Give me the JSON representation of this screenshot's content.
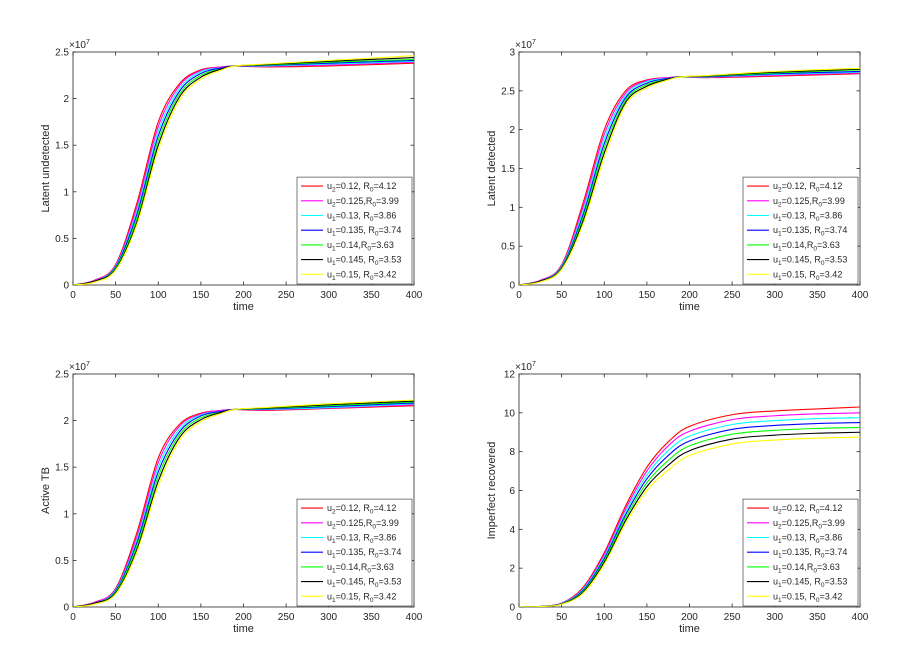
{
  "chart_data": [
    {
      "type": "line",
      "ylabel": "Latent undetected",
      "xlabel": "time",
      "exponent": "7",
      "xlim": [
        0,
        400
      ],
      "ylim": [
        0,
        2.5
      ],
      "xticks": [
        0,
        50,
        100,
        150,
        200,
        250,
        300,
        350,
        400
      ],
      "yticks": [
        0,
        0.5,
        1,
        1.5,
        2,
        2.5
      ],
      "ytick_labels": [
        "0",
        "0.5",
        "1",
        "1.5",
        "2",
        "2.5"
      ],
      "legend_position": "lower-right",
      "x": [
        0,
        25,
        50,
        75,
        100,
        125,
        150,
        175,
        190,
        225,
        300,
        400
      ],
      "series": [
        {
          "sub": "2",
          "prefix": "=0.12, R",
          "suffix": "=4.12",
          "color": "#ff0000",
          "values": [
            0.0,
            0.05,
            0.22,
            0.88,
            1.75,
            2.16,
            2.31,
            2.34,
            2.35,
            2.34,
            2.35,
            2.38
          ]
        },
        {
          "sub": "2",
          "prefix": "=0.125,R",
          "suffix": "=3.99",
          "color": "#ff00ff",
          "values": [
            0.0,
            0.05,
            0.21,
            0.84,
            1.7,
            2.14,
            2.3,
            2.34,
            2.35,
            2.345,
            2.36,
            2.39
          ]
        },
        {
          "sub": "1",
          "prefix": "=0.13, R",
          "suffix": "=3.86",
          "color": "#00ffff",
          "values": [
            0.0,
            0.04,
            0.2,
            0.8,
            1.65,
            2.11,
            2.29,
            2.33,
            2.35,
            2.35,
            2.37,
            2.4
          ]
        },
        {
          "sub": "1",
          "prefix": "=0.135, R",
          "suffix": "=3.74",
          "color": "#0000ff",
          "values": [
            0.0,
            0.04,
            0.19,
            0.76,
            1.6,
            2.08,
            2.27,
            2.33,
            2.35,
            2.355,
            2.38,
            2.41
          ]
        },
        {
          "sub": "1",
          "prefix": "=0.14,R",
          "suffix": "=3.63",
          "color": "#00ff00",
          "values": [
            0.0,
            0.04,
            0.18,
            0.72,
            1.55,
            2.05,
            2.25,
            2.32,
            2.35,
            2.36,
            2.39,
            2.42
          ]
        },
        {
          "sub": "1",
          "prefix": "=0.145, R",
          "suffix": "=3.53",
          "color": "#000000",
          "values": [
            0.0,
            0.04,
            0.17,
            0.68,
            1.5,
            2.02,
            2.23,
            2.32,
            2.35,
            2.365,
            2.4,
            2.44
          ]
        },
        {
          "sub": "1",
          "prefix": "=0.15, R",
          "suffix": "=3.42",
          "color": "#ffff00",
          "values": [
            0.0,
            0.03,
            0.16,
            0.65,
            1.45,
            1.99,
            2.21,
            2.31,
            2.35,
            2.37,
            2.41,
            2.46
          ]
        }
      ]
    },
    {
      "type": "line",
      "ylabel": "Latent detected",
      "xlabel": "time",
      "exponent": "7",
      "xlim": [
        0,
        400
      ],
      "ylim": [
        0,
        3
      ],
      "xticks": [
        0,
        50,
        100,
        150,
        200,
        250,
        300,
        350,
        400
      ],
      "yticks": [
        0,
        0.5,
        1,
        1.5,
        2,
        2.5,
        3
      ],
      "ytick_labels": [
        "0",
        "0.5",
        "1",
        "1.5",
        "2",
        "2.5",
        "3"
      ],
      "legend_position": "lower-right",
      "x": [
        0,
        25,
        50,
        75,
        100,
        125,
        150,
        175,
        190,
        225,
        300,
        400
      ],
      "series": [
        {
          "sub": "2",
          "prefix": "=0.12, R",
          "suffix": "=4.12",
          "color": "#ff0000",
          "values": [
            0.0,
            0.06,
            0.26,
            1.05,
            2.0,
            2.5,
            2.64,
            2.67,
            2.68,
            2.67,
            2.69,
            2.72
          ]
        },
        {
          "sub": "2",
          "prefix": "=0.125,R",
          "suffix": "=3.99",
          "color": "#ff00ff",
          "values": [
            0.0,
            0.06,
            0.25,
            1.0,
            1.94,
            2.47,
            2.63,
            2.67,
            2.68,
            2.675,
            2.7,
            2.73
          ]
        },
        {
          "sub": "1",
          "prefix": "=0.13, R",
          "suffix": "=3.86",
          "color": "#00ffff",
          "values": [
            0.0,
            0.05,
            0.24,
            0.95,
            1.88,
            2.44,
            2.62,
            2.66,
            2.68,
            2.68,
            2.71,
            2.74
          ]
        },
        {
          "sub": "1",
          "prefix": "=0.135, R",
          "suffix": "=3.74",
          "color": "#0000ff",
          "values": [
            0.0,
            0.05,
            0.23,
            0.9,
            1.82,
            2.41,
            2.6,
            2.66,
            2.68,
            2.685,
            2.72,
            2.75
          ]
        },
        {
          "sub": "1",
          "prefix": "=0.14,R",
          "suffix": "=3.63",
          "color": "#00ff00",
          "values": [
            0.0,
            0.05,
            0.22,
            0.86,
            1.76,
            2.38,
            2.58,
            2.65,
            2.68,
            2.69,
            2.73,
            2.77
          ]
        },
        {
          "sub": "1",
          "prefix": "=0.145, R",
          "suffix": "=3.53",
          "color": "#000000",
          "values": [
            0.0,
            0.05,
            0.21,
            0.82,
            1.7,
            2.35,
            2.56,
            2.65,
            2.68,
            2.695,
            2.74,
            2.78
          ]
        },
        {
          "sub": "1",
          "prefix": "=0.15, R",
          "suffix": "=3.42",
          "color": "#ffff00",
          "values": [
            0.0,
            0.04,
            0.2,
            0.78,
            1.64,
            2.32,
            2.54,
            2.64,
            2.68,
            2.7,
            2.75,
            2.79
          ]
        }
      ]
    },
    {
      "type": "line",
      "ylabel": "Active TB",
      "xlabel": "time",
      "exponent": "7",
      "xlim": [
        0,
        400
      ],
      "ylim": [
        0,
        2.5
      ],
      "xticks": [
        0,
        50,
        100,
        150,
        200,
        250,
        300,
        350,
        400
      ],
      "yticks": [
        0,
        0.5,
        1,
        1.5,
        2,
        2.5
      ],
      "ytick_labels": [
        "0",
        "0.5",
        "1",
        "1.5",
        "2",
        "2.5"
      ],
      "legend_position": "lower-right",
      "x": [
        0,
        25,
        50,
        75,
        100,
        125,
        150,
        175,
        190,
        225,
        300,
        400
      ],
      "series": [
        {
          "sub": "2",
          "prefix": "=0.12, R",
          "suffix": "=4.12",
          "color": "#ff0000",
          "values": [
            0.0,
            0.05,
            0.2,
            0.8,
            1.6,
            1.96,
            2.08,
            2.11,
            2.12,
            2.11,
            2.13,
            2.16
          ]
        },
        {
          "sub": "2",
          "prefix": "=0.125,R",
          "suffix": "=3.99",
          "color": "#ff00ff",
          "values": [
            0.0,
            0.05,
            0.19,
            0.76,
            1.55,
            1.94,
            2.07,
            2.11,
            2.12,
            2.115,
            2.135,
            2.17
          ]
        },
        {
          "sub": "1",
          "prefix": "=0.13, R",
          "suffix": "=3.86",
          "color": "#00ffff",
          "values": [
            0.0,
            0.04,
            0.18,
            0.72,
            1.5,
            1.91,
            2.06,
            2.1,
            2.12,
            2.12,
            2.14,
            2.18
          ]
        },
        {
          "sub": "1",
          "prefix": "=0.135, R",
          "suffix": "=3.74",
          "color": "#0000ff",
          "values": [
            0.0,
            0.04,
            0.17,
            0.69,
            1.45,
            1.88,
            2.05,
            2.1,
            2.12,
            2.125,
            2.15,
            2.19
          ]
        },
        {
          "sub": "1",
          "prefix": "=0.14,R",
          "suffix": "=3.63",
          "color": "#00ff00",
          "values": [
            0.0,
            0.04,
            0.16,
            0.66,
            1.4,
            1.85,
            2.03,
            2.09,
            2.12,
            2.13,
            2.16,
            2.2
          ]
        },
        {
          "sub": "1",
          "prefix": "=0.145, R",
          "suffix": "=3.53",
          "color": "#000000",
          "values": [
            0.0,
            0.04,
            0.15,
            0.62,
            1.35,
            1.82,
            2.01,
            2.09,
            2.12,
            2.135,
            2.17,
            2.21
          ]
        },
        {
          "sub": "1",
          "prefix": "=0.15, R",
          "suffix": "=3.42",
          "color": "#ffff00",
          "values": [
            0.0,
            0.03,
            0.14,
            0.59,
            1.3,
            1.79,
            1.99,
            2.08,
            2.12,
            2.14,
            2.18,
            2.22
          ]
        }
      ]
    },
    {
      "type": "line",
      "ylabel": "Imperfect recovered",
      "xlabel": "time",
      "exponent": "7",
      "xlim": [
        0,
        400
      ],
      "ylim": [
        0,
        12
      ],
      "xticks": [
        0,
        50,
        100,
        150,
        200,
        250,
        300,
        350,
        400
      ],
      "yticks": [
        0,
        2,
        4,
        6,
        8,
        10,
        12
      ],
      "ytick_labels": [
        "0",
        "2",
        "4",
        "6",
        "8",
        "10",
        "12"
      ],
      "legend_position": "lower-right",
      "x": [
        0,
        25,
        50,
        75,
        100,
        125,
        150,
        175,
        200,
        250,
        300,
        350,
        400
      ],
      "series": [
        {
          "sub": "2",
          "prefix": "=0.12, R",
          "suffix": "=4.12",
          "color": "#ff0000",
          "values": [
            0.0,
            0.03,
            0.2,
            1.0,
            2.8,
            5.2,
            7.2,
            8.5,
            9.3,
            9.9,
            10.1,
            10.2,
            10.3
          ]
        },
        {
          "sub": "2",
          "prefix": "=0.125,R",
          "suffix": "=3.99",
          "color": "#ff00ff",
          "values": [
            0.0,
            0.03,
            0.19,
            0.95,
            2.7,
            5.05,
            7.0,
            8.3,
            9.05,
            9.65,
            9.85,
            9.95,
            10.0
          ]
        },
        {
          "sub": "1",
          "prefix": "=0.13, R",
          "suffix": "=3.86",
          "color": "#00ffff",
          "values": [
            0.0,
            0.03,
            0.18,
            0.9,
            2.6,
            4.9,
            6.8,
            8.05,
            8.8,
            9.4,
            9.6,
            9.7,
            9.75
          ]
        },
        {
          "sub": "1",
          "prefix": "=0.135, R",
          "suffix": "=3.74",
          "color": "#0000ff",
          "values": [
            0.0,
            0.02,
            0.17,
            0.85,
            2.5,
            4.75,
            6.6,
            7.8,
            8.55,
            9.15,
            9.35,
            9.45,
            9.5
          ]
        },
        {
          "sub": "1",
          "prefix": "=0.14,R",
          "suffix": "=3.63",
          "color": "#00ff00",
          "values": [
            0.0,
            0.02,
            0.16,
            0.8,
            2.4,
            4.6,
            6.4,
            7.55,
            8.3,
            8.9,
            9.1,
            9.2,
            9.25
          ]
        },
        {
          "sub": "1",
          "prefix": "=0.145, R",
          "suffix": "=3.53",
          "color": "#000000",
          "values": [
            0.0,
            0.02,
            0.15,
            0.75,
            2.3,
            4.45,
            6.2,
            7.3,
            8.05,
            8.65,
            8.85,
            8.95,
            9.0
          ]
        },
        {
          "sub": "1",
          "prefix": "=0.15, R",
          "suffix": "=3.42",
          "color": "#ffff00",
          "values": [
            0.0,
            0.02,
            0.14,
            0.7,
            2.2,
            4.3,
            6.0,
            7.05,
            7.8,
            8.4,
            8.6,
            8.7,
            8.75
          ]
        }
      ]
    }
  ]
}
